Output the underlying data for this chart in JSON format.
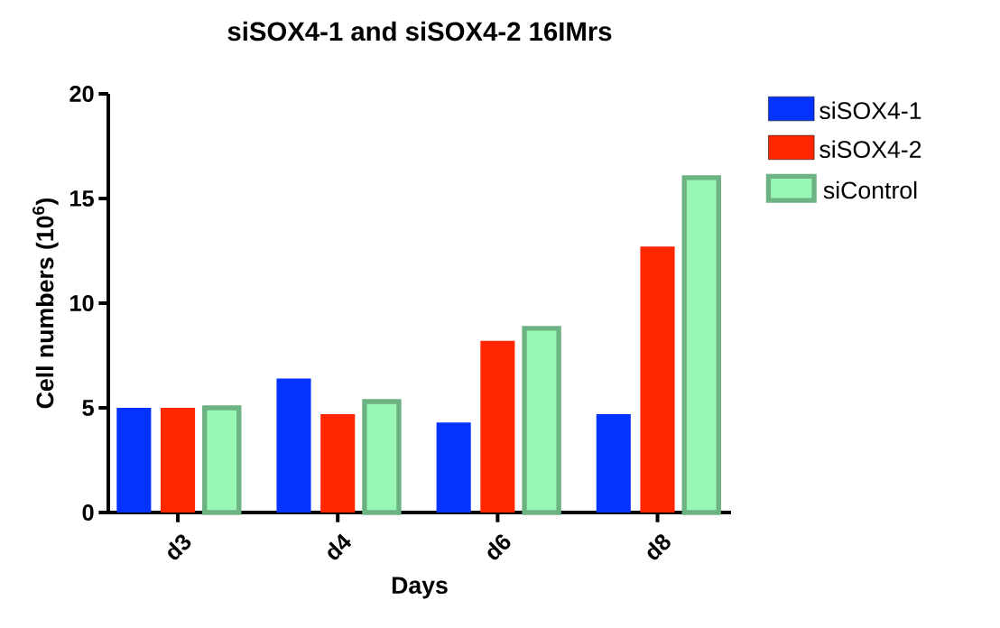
{
  "chart_data": {
    "type": "bar",
    "title": "siSOX4-1 and siSOX4-2 16IMrs",
    "xlabel": "Days",
    "ylabel": "Cell numbers (10$^{6}$)",
    "categories": [
      "d3",
      "d4",
      "d6",
      "d8"
    ],
    "series": [
      {
        "name": "siSOX4-1",
        "color": "#0433ff",
        "values": [
          5.0,
          6.4,
          4.3,
          4.7
        ]
      },
      {
        "name": "siSOX4-2",
        "color": "#ff2600",
        "values": [
          5.0,
          4.7,
          8.2,
          12.7
        ]
      },
      {
        "name": "siControl",
        "color": "#98f7b5",
        "values": [
          5.0,
          5.3,
          8.8,
          16.0
        ]
      }
    ],
    "ylim": [
      0,
      20
    ],
    "yticks": [
      0,
      5,
      10,
      15,
      20
    ],
    "grid": false,
    "legend": "top right"
  }
}
